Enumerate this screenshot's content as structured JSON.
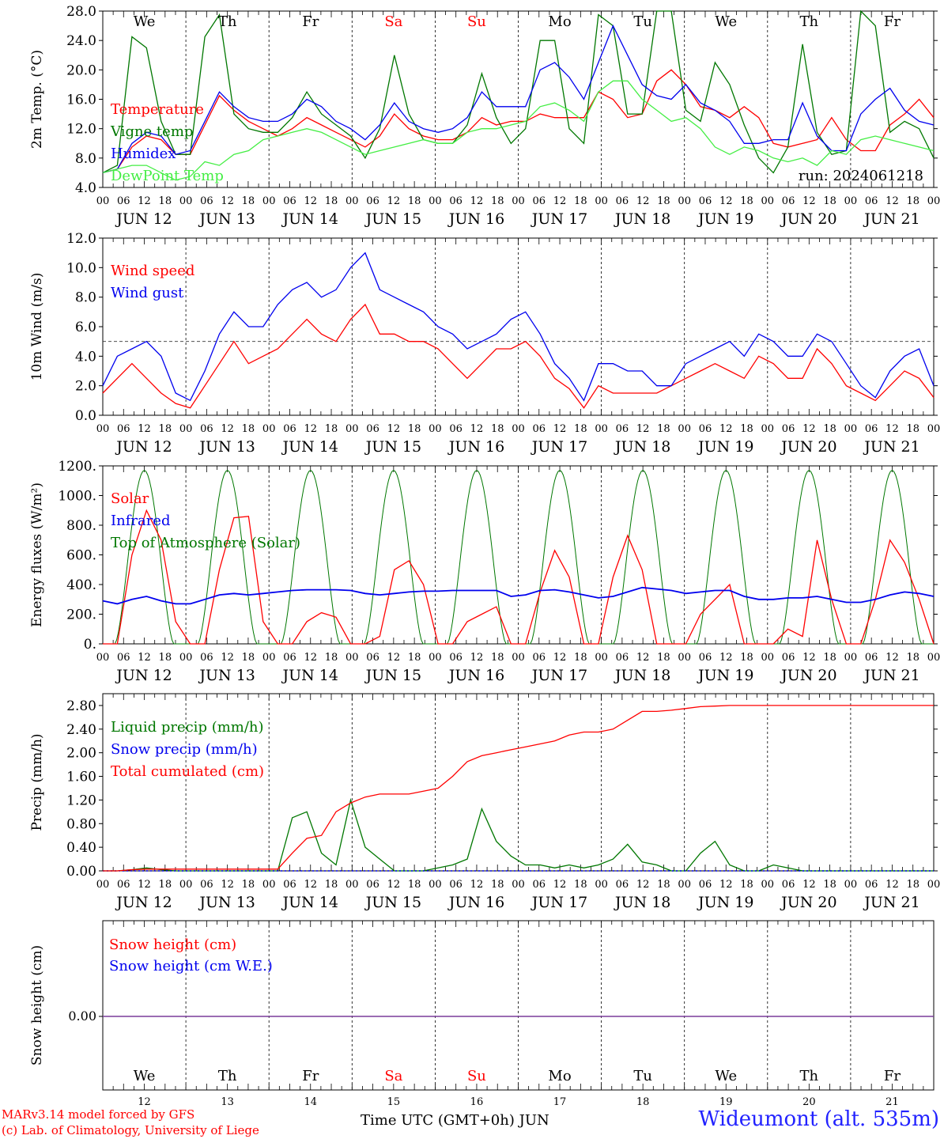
{
  "run_label": "run: 2024061218",
  "x_axis_title": "Time UTC (GMT+0h)",
  "month_label": "JUN",
  "station": "Wideumont (alt. 535m)",
  "credits": [
    "MARv3.14 model forced by GFS",
    "(c) Lab. of Climatology, University of Liege"
  ],
  "days": [
    "JUN 12",
    "JUN 13",
    "JUN 14",
    "JUN 15",
    "JUN 16",
    "JUN 17",
    "JUN 18",
    "JUN 19",
    "JUN 20",
    "JUN 21"
  ],
  "day_numbers": [
    "12",
    "13",
    "14",
    "15",
    "16",
    "17",
    "18",
    "19",
    "20",
    "21"
  ],
  "weekdays": [
    "We",
    "Th",
    "Fr",
    "Sa",
    "Su",
    "Mo",
    "Tu",
    "We",
    "Th",
    "Fr"
  ],
  "weekday_colors": [
    "#000000",
    "#000000",
    "#000000",
    "#ff0000",
    "#ff0000",
    "#000000",
    "#000000",
    "#000000",
    "#000000",
    "#000000"
  ],
  "hour_ticks": [
    "00",
    "06",
    "12",
    "18"
  ],
  "chart_data": [
    {
      "type": "line",
      "ylabel": "2m Temp. (°C)",
      "ylim": [
        4.0,
        28.0
      ],
      "yticks": [
        "4.0",
        "8.0",
        "12.0",
        "16.0",
        "20.0",
        "24.0",
        "28.0"
      ],
      "x": "hours since JUN 12 00 UTC, 0-240, every 6h",
      "series": [
        {
          "name": "Temperature",
          "color": "#ff0000",
          "values": [
            6.0,
            6.5,
            9.5,
            11.0,
            10.5,
            8.5,
            8.5,
            12.5,
            16.5,
            14.5,
            13.0,
            12.0,
            11.0,
            12.0,
            13.5,
            12.5,
            11.5,
            10.5,
            9.5,
            11.0,
            14.0,
            12.0,
            11.0,
            10.5,
            10.5,
            11.5,
            13.5,
            12.5,
            13.0,
            13.0,
            14.0,
            13.5,
            13.5,
            13.5,
            17.0,
            16.0,
            13.5,
            14.0,
            18.5,
            20.0,
            18.0,
            15.0,
            14.5,
            13.5,
            15.0,
            13.5,
            10.0,
            9.5,
            10.0,
            10.5,
            13.5,
            10.5,
            9.0,
            9.0,
            12.5,
            14.0,
            16.0,
            13.5
          ]
        },
        {
          "name": "Vigne temp",
          "color": "#007700",
          "values": [
            6.0,
            7.0,
            24.5,
            23.0,
            13.0,
            8.5,
            8.5,
            24.5,
            27.5,
            14.0,
            12.0,
            11.5,
            11.5,
            13.5,
            17.0,
            14.0,
            12.5,
            11.0,
            8.0,
            12.0,
            22.0,
            14.0,
            10.5,
            10.0,
            10.0,
            12.5,
            19.5,
            13.5,
            10.0,
            12.0,
            24.0,
            24.0,
            12.0,
            10.0,
            27.5,
            26.0,
            14.0,
            14.0,
            28.0,
            28.0,
            14.5,
            13.0,
            21.0,
            18.0,
            12.5,
            8.0,
            6.0,
            9.5,
            23.5,
            11.5,
            8.5,
            9.0,
            28.0,
            26.0,
            11.5,
            13.0,
            12.0,
            8.0
          ]
        },
        {
          "name": "Humidex",
          "color": "#0000ee",
          "values": [
            6.0,
            6.5,
            10.0,
            11.5,
            11.0,
            8.5,
            9.0,
            13.0,
            17.0,
            15.0,
            13.5,
            13.0,
            13.0,
            14.0,
            16.0,
            15.0,
            13.0,
            12.0,
            10.5,
            12.5,
            15.5,
            13.0,
            12.0,
            11.5,
            12.0,
            13.5,
            17.0,
            15.0,
            15.0,
            15.0,
            20.0,
            21.0,
            19.0,
            16.0,
            21.0,
            26.0,
            22.0,
            18.0,
            16.5,
            16.0,
            18.0,
            15.5,
            14.5,
            13.0,
            10.0,
            10.0,
            10.5,
            10.5,
            15.5,
            11.0,
            9.0,
            9.0,
            14.0,
            16.0,
            17.5,
            14.5,
            13.0,
            12.5
          ]
        },
        {
          "name": "DewPoint Temp",
          "color": "#44ee44",
          "values": [
            6.0,
            6.5,
            7.0,
            7.0,
            6.0,
            5.0,
            5.5,
            7.5,
            7.0,
            8.5,
            9.0,
            10.5,
            11.0,
            11.5,
            12.0,
            11.5,
            10.5,
            9.5,
            8.5,
            9.0,
            9.5,
            10.0,
            10.5,
            10.0,
            10.0,
            11.5,
            12.0,
            12.0,
            12.5,
            13.0,
            15.0,
            15.5,
            14.5,
            13.0,
            17.0,
            18.5,
            18.5,
            16.0,
            14.5,
            13.0,
            13.5,
            12.0,
            9.5,
            8.5,
            9.5,
            9.0,
            8.0,
            7.5,
            8.0,
            7.0,
            9.0,
            8.5,
            10.5,
            11.0,
            10.5,
            10.0,
            9.5,
            9.0
          ]
        }
      ]
    },
    {
      "type": "line",
      "ylabel": "10m Wind (m/s)",
      "ylim": [
        0.0,
        12.0
      ],
      "yticks": [
        "0.0",
        "2.0",
        "4.0",
        "6.0",
        "8.0",
        "10.0",
        "12.0"
      ],
      "reference_line": 5.0,
      "series": [
        {
          "name": "Wind speed",
          "color": "#ff0000",
          "values": [
            1.5,
            2.5,
            3.5,
            2.5,
            1.5,
            0.8,
            0.5,
            2.0,
            3.5,
            5.0,
            3.5,
            4.0,
            4.5,
            5.5,
            6.5,
            5.5,
            5.0,
            6.5,
            7.5,
            5.5,
            5.5,
            5.0,
            5.0,
            4.5,
            3.5,
            2.5,
            3.5,
            4.5,
            4.5,
            5.0,
            4.0,
            2.5,
            1.8,
            0.5,
            2.0,
            1.5,
            1.5,
            1.5,
            1.5,
            2.0,
            2.5,
            3.0,
            3.5,
            3.0,
            2.5,
            4.0,
            3.5,
            2.5,
            2.5,
            4.5,
            3.5,
            2.0,
            1.5,
            1.0,
            2.0,
            3.0,
            2.5,
            1.2
          ]
        },
        {
          "name": "Wind gust",
          "color": "#0000ee",
          "values": [
            2.0,
            4.0,
            4.5,
            5.0,
            4.0,
            1.5,
            1.0,
            3.0,
            5.5,
            7.0,
            6.0,
            6.0,
            7.5,
            8.5,
            9.0,
            8.0,
            8.5,
            10.0,
            11.0,
            8.5,
            8.0,
            7.5,
            7.0,
            6.0,
            5.5,
            4.5,
            5.0,
            5.5,
            6.5,
            7.0,
            5.5,
            3.5,
            2.5,
            1.0,
            3.5,
            3.5,
            3.0,
            3.0,
            2.0,
            2.0,
            3.5,
            4.0,
            4.5,
            5.0,
            4.0,
            5.5,
            5.0,
            4.0,
            4.0,
            5.5,
            5.0,
            3.5,
            2.0,
            1.2,
            3.0,
            4.0,
            4.5,
            2.0
          ]
        }
      ]
    },
    {
      "type": "line",
      "ylabel": "Energy fluxes (W/m²)",
      "ylim": [
        0,
        1200
      ],
      "yticks": [
        "0.",
        "200.",
        "400.",
        "600.",
        "800.",
        "1000.",
        "1200."
      ],
      "series": [
        {
          "name": "Solar",
          "color": "#ff0000",
          "values": [
            0,
            0,
            600,
            900,
            700,
            150,
            0,
            0,
            500,
            850,
            860,
            150,
            0,
            0,
            150,
            210,
            180,
            0,
            0,
            50,
            500,
            560,
            400,
            0,
            0,
            150,
            200,
            250,
            0,
            0,
            350,
            630,
            450,
            0,
            0,
            450,
            730,
            500,
            0,
            0,
            0,
            200,
            300,
            400,
            0,
            0,
            0,
            100,
            50,
            700,
            300,
            0,
            0,
            300,
            700,
            550,
            300,
            0
          ]
        },
        {
          "name": "Infrared",
          "color": "#0000ee",
          "values": [
            290,
            270,
            300,
            320,
            290,
            270,
            270,
            300,
            330,
            340,
            330,
            340,
            350,
            360,
            365,
            365,
            365,
            360,
            340,
            330,
            340,
            350,
            355,
            355,
            360,
            360,
            360,
            360,
            320,
            330,
            360,
            365,
            350,
            330,
            310,
            320,
            350,
            380,
            370,
            360,
            340,
            350,
            360,
            360,
            320,
            300,
            300,
            310,
            310,
            320,
            300,
            280,
            280,
            300,
            330,
            350,
            340,
            320
          ]
        },
        {
          "name": "Top of Atmosphere (Solar)",
          "color": "#007700",
          "values": "daily arch 0 → 1170 (peak ~12 UTC)"
        }
      ]
    },
    {
      "type": "line",
      "ylabel": "Precip (mm/h)",
      "ylim": [
        0.0,
        3.0
      ],
      "yticks": [
        "0.00",
        "0.40",
        "0.80",
        "1.20",
        "1.60",
        "2.00",
        "2.40",
        "2.80"
      ],
      "series": [
        {
          "name": "Liquid precip (mm/h)",
          "color": "#007700",
          "values": [
            0,
            0,
            0.02,
            0.05,
            0.02,
            0,
            0,
            0,
            0,
            0,
            0,
            0,
            0,
            0.9,
            1.0,
            0.3,
            0.1,
            1.2,
            0.4,
            0.2,
            0,
            0,
            0,
            0.05,
            0.1,
            0.2,
            1.05,
            0.5,
            0.25,
            0.1,
            0.1,
            0.05,
            0.1,
            0.05,
            0.1,
            0.2,
            0.45,
            0.15,
            0.1,
            0,
            0,
            0.3,
            0.5,
            0.1,
            0,
            0,
            0.1,
            0.05,
            0,
            0,
            0,
            0,
            0,
            0,
            0,
            0,
            0,
            0
          ]
        },
        {
          "name": "Snow precip (mm/h)",
          "color": "#0000ee",
          "values": "0 everywhere"
        },
        {
          "name": "Total cumulated (cm)",
          "color": "#ff0000",
          "values": [
            0,
            0,
            0.02,
            0.03,
            0.03,
            0.03,
            0.03,
            0.03,
            0.03,
            0.03,
            0.03,
            0.03,
            0.03,
            0.3,
            0.55,
            0.6,
            1.0,
            1.15,
            1.25,
            1.3,
            1.3,
            1.3,
            1.35,
            1.4,
            1.6,
            1.85,
            1.95,
            2.0,
            2.05,
            2.1,
            2.15,
            2.2,
            2.3,
            2.35,
            2.35,
            2.4,
            2.55,
            2.7,
            2.7,
            2.72,
            2.75,
            2.78,
            2.79,
            2.8,
            2.8,
            2.8,
            2.8,
            2.8,
            2.8,
            2.8,
            2.8,
            2.8,
            2.8,
            2.8,
            2.8,
            2.8,
            2.8,
            2.8
          ]
        }
      ]
    },
    {
      "type": "line",
      "ylabel": "Snow height (cm)",
      "yticks": [
        "0.00"
      ],
      "series": [
        {
          "name": "Snow height (cm)",
          "color": "#ff0000",
          "values": "0.00 everywhere"
        },
        {
          "name": "Snow height (cm W.E.)",
          "color": "#0000ee",
          "values": "0.00 everywhere"
        }
      ]
    }
  ]
}
